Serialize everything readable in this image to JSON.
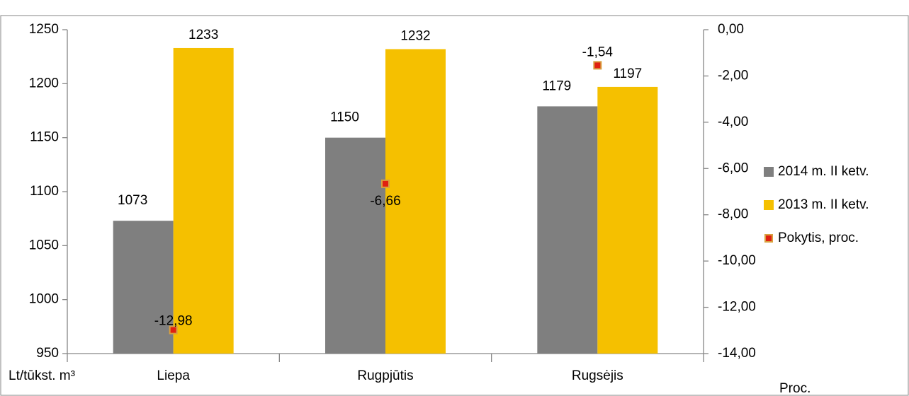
{
  "chart_data": {
    "type": "bar",
    "categories": [
      "Liepa",
      "Rugpjūtis",
      "Rugsėjis"
    ],
    "series": [
      {
        "name": "2014 m. II ketv.",
        "color": "#7f7f7f",
        "values": [
          1073,
          1150,
          1179
        ]
      },
      {
        "name": "2013 m. II ketv.",
        "color": "#f5c000",
        "values": [
          1233,
          1232,
          1197
        ]
      },
      {
        "name": "Pokytis, proc.",
        "color": "#e02010",
        "axis": "y2",
        "type": "scatter",
        "values": [
          -12.98,
          -6.66,
          -1.54
        ],
        "value_labels": [
          "-12,98",
          "-6,66",
          "-1,54"
        ]
      }
    ],
    "ylim": [
      950,
      1250
    ],
    "yticks": [
      950,
      1000,
      1050,
      1100,
      1150,
      1200,
      1250
    ],
    "y2lim": [
      -14,
      0
    ],
    "y2ticks": [
      {
        "value": -14,
        "label": "-14,00"
      },
      {
        "value": -12,
        "label": "-12,00"
      },
      {
        "value": -10,
        "label": "-10,00"
      },
      {
        "value": -8,
        "label": "-8,00"
      },
      {
        "value": -6,
        "label": "-6,00"
      },
      {
        "value": -4,
        "label": "-4,00"
      },
      {
        "value": -2,
        "label": "-2,00"
      },
      {
        "value": 0,
        "label": "0,00"
      }
    ],
    "ylabel": "Lt/tūkst. m³",
    "y2label": "Proc.",
    "legend": "right"
  }
}
